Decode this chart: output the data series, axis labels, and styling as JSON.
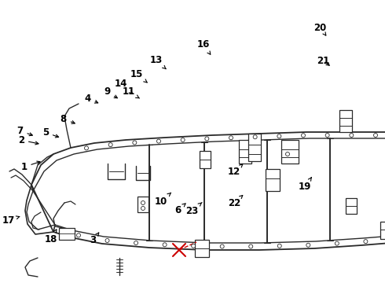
{
  "bg_color": "#ffffff",
  "frame_color": "#2a2a2a",
  "red_color": "#cc0000",
  "box_color": "#000000",
  "label_color": "#000000",
  "label_fontsize": 8.5,
  "parts": [
    {
      "id": "1",
      "arrow_to": [
        0.112,
        0.568
      ],
      "label_at": [
        0.062,
        0.59
      ]
    },
    {
      "id": "2",
      "arrow_to": [
        0.108,
        0.51
      ],
      "label_at": [
        0.055,
        0.495
      ]
    },
    {
      "id": "3",
      "arrow_to": [
        0.258,
        0.82
      ],
      "label_at": [
        0.242,
        0.848
      ]
    },
    {
      "id": "4",
      "arrow_to": [
        0.262,
        0.368
      ],
      "label_at": [
        0.228,
        0.348
      ]
    },
    {
      "id": "5",
      "arrow_to": [
        0.16,
        0.488
      ],
      "label_at": [
        0.118,
        0.468
      ]
    },
    {
      "id": "6",
      "arrow_to": [
        0.488,
        0.712
      ],
      "label_at": [
        0.462,
        0.742
      ]
    },
    {
      "id": "7",
      "arrow_to": [
        0.092,
        0.482
      ],
      "label_at": [
        0.052,
        0.462
      ]
    },
    {
      "id": "8",
      "arrow_to": [
        0.202,
        0.44
      ],
      "label_at": [
        0.165,
        0.42
      ]
    },
    {
      "id": "9",
      "arrow_to": [
        0.312,
        0.352
      ],
      "label_at": [
        0.278,
        0.325
      ]
    },
    {
      "id": "10",
      "arrow_to": [
        0.445,
        0.68
      ],
      "label_at": [
        0.418,
        0.712
      ]
    },
    {
      "id": "11",
      "arrow_to": [
        0.368,
        0.352
      ],
      "label_at": [
        0.335,
        0.325
      ]
    },
    {
      "id": "12",
      "arrow_to": [
        0.632,
        0.578
      ],
      "label_at": [
        0.608,
        0.608
      ]
    },
    {
      "id": "13",
      "arrow_to": [
        0.432,
        0.245
      ],
      "label_at": [
        0.405,
        0.212
      ]
    },
    {
      "id": "14",
      "arrow_to": [
        0.35,
        0.338
      ],
      "label_at": [
        0.315,
        0.295
      ]
    },
    {
      "id": "15",
      "arrow_to": [
        0.388,
        0.298
      ],
      "label_at": [
        0.355,
        0.262
      ]
    },
    {
      "id": "16",
      "arrow_to": [
        0.548,
        0.195
      ],
      "label_at": [
        0.528,
        0.158
      ]
    },
    {
      "id": "17",
      "arrow_to": [
        0.058,
        0.762
      ],
      "label_at": [
        0.022,
        0.778
      ]
    },
    {
      "id": "18",
      "arrow_to": [
        0.148,
        0.808
      ],
      "label_at": [
        0.132,
        0.845
      ]
    },
    {
      "id": "19",
      "arrow_to": [
        0.81,
        0.625
      ],
      "label_at": [
        0.792,
        0.66
      ]
    },
    {
      "id": "20",
      "arrow_to": [
        0.848,
        0.128
      ],
      "label_at": [
        0.832,
        0.098
      ]
    },
    {
      "id": "21",
      "arrow_to": [
        0.862,
        0.238
      ],
      "label_at": [
        0.84,
        0.215
      ]
    },
    {
      "id": "22",
      "arrow_to": [
        0.632,
        0.688
      ],
      "label_at": [
        0.608,
        0.718
      ]
    },
    {
      "id": "23",
      "arrow_to": [
        0.525,
        0.715
      ],
      "label_at": [
        0.498,
        0.745
      ]
    }
  ]
}
